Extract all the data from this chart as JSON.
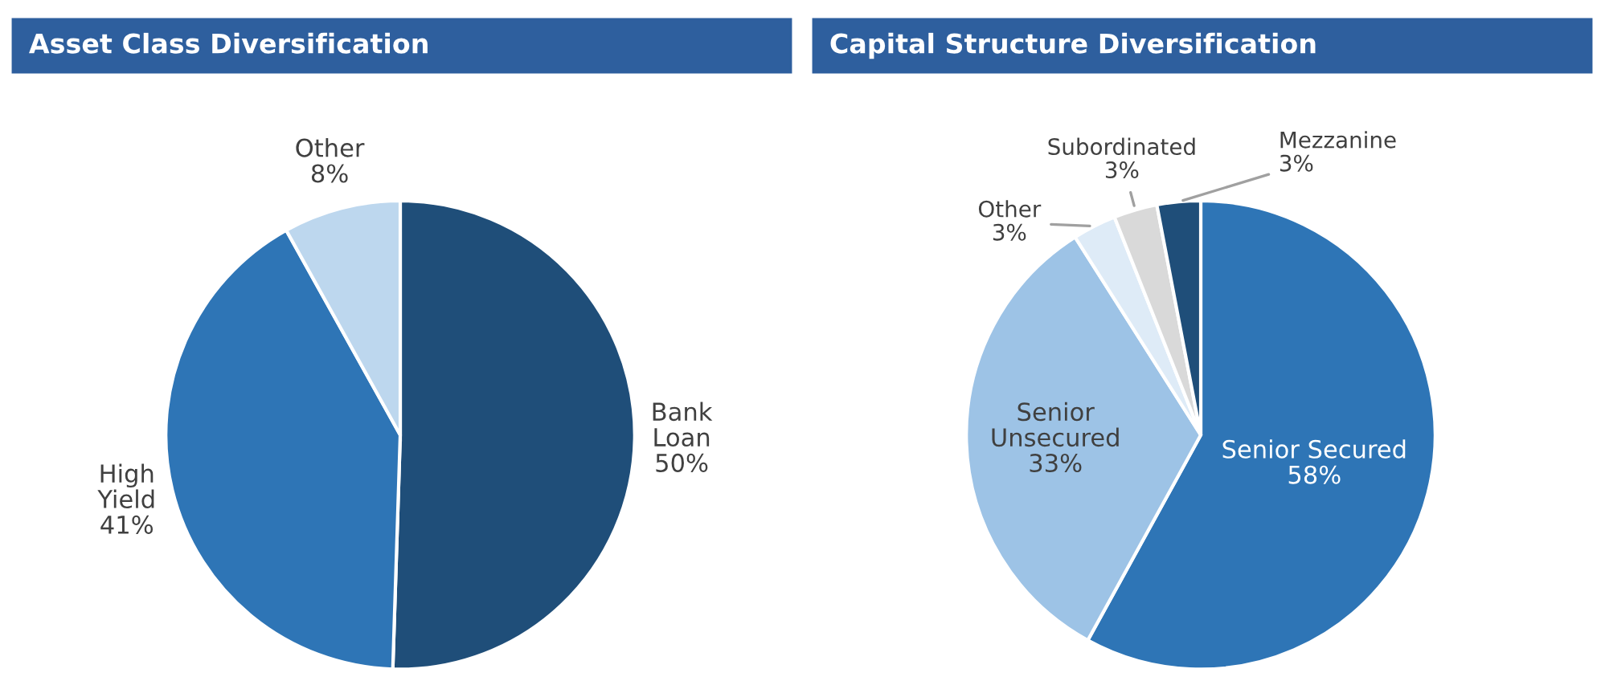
{
  "chart_data": [
    {
      "type": "pie",
      "title": "Asset Class Diversification",
      "categories": [
        "Bank\nLoan",
        "High\nYield",
        "Other"
      ],
      "values": [
        50,
        41,
        8
      ],
      "value_labels": [
        "50%",
        "41%",
        "8%"
      ],
      "colors": [
        "#1f4e79",
        "#2e75b6",
        "#bdd7ee"
      ]
    },
    {
      "type": "pie",
      "title": "Capital Structure Diversification",
      "categories": [
        "Senior Secured",
        "Senior\nUnsecured",
        "Other",
        "Subordinated",
        "Mezzanine"
      ],
      "values": [
        58,
        33,
        3,
        3,
        3
      ],
      "value_labels": [
        "58%",
        "33%",
        "3%",
        "3%",
        "3%"
      ],
      "colors": [
        "#2e75b6",
        "#9dc3e6",
        "#deebf7",
        "#d9d9d9",
        "#1f4e79"
      ]
    }
  ]
}
